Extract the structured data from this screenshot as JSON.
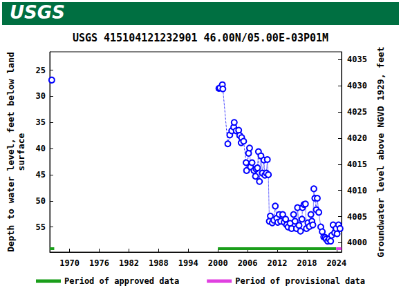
{
  "logo": "USGS",
  "chart_data": {
    "type": "scatter",
    "title": "USGS 415104121232901 46.00N/05.00E-03P01M",
    "y_label": "Depth to water level, feet below land\nsurface",
    "y2_label": "Groundwater level above NGVD 1929, feet",
    "x": [
      1966.4,
      null,
      2000.2,
      2000.4,
      2000.9,
      2001.0,
      2002.0,
      2002.4,
      2002.8,
      2003.2,
      2003.3,
      2003.7,
      2004.2,
      2004.4,
      2004.7,
      2004.8,
      2005.2,
      2005.7,
      2005.8,
      2006.2,
      2006.4,
      2006.6,
      2006.9,
      2007.3,
      2007.6,
      2007.7,
      2008.0,
      2008.2,
      2008.4,
      2008.7,
      2009.0,
      2009.3,
      2009.5,
      2009.8,
      2010.0,
      2010.2,
      2010.4,
      2010.6,
      2011.0,
      2011.3,
      2011.6,
      2011.9,
      2012.1,
      2012.4,
      2012.7,
      2013.1,
      2013.4,
      2013.7,
      2013.9,
      2014.2,
      2014.6,
      2014.9,
      2015.3,
      2015.6,
      2015.9,
      2016.1,
      2016.4,
      2016.7,
      2017.0,
      2017.1,
      2017.4,
      2017.7,
      2017.9,
      2018.2,
      2018.5,
      2018.8,
      2019.0,
      2019.2,
      2019.4,
      2019.6,
      2019.9,
      2020.1,
      2020.4,
      2020.8,
      2021.1,
      2021.4,
      2021.7,
      2021.9,
      2022.2,
      2022.5,
      2022.8,
      2023.0,
      2023.3,
      2023.6,
      2023.9,
      2024.1,
      2024.4,
      2024.7
    ],
    "values": [
      26.9,
      null,
      28.5,
      28.4,
      27.8,
      28.6,
      39.1,
      37.4,
      36.6,
      35.9,
      35.0,
      36.6,
      36.5,
      37.5,
      38.9,
      37.9,
      38.6,
      42.7,
      44.2,
      40.9,
      39.9,
      43.5,
      42.7,
      44.2,
      45.3,
      43.9,
      43.7,
      40.6,
      46.3,
      41.4,
      44.7,
      42.2,
      45.1,
      44.7,
      42.1,
      45.0,
      53.9,
      52.9,
      54.2,
      53.7,
      51.0,
      53.3,
      54.1,
      52.6,
      53.9,
      52.6,
      54.1,
      53.5,
      54.6,
      55.0,
      54.3,
      55.3,
      52.6,
      53.9,
      55.3,
      51.3,
      54.7,
      55.8,
      53.5,
      51.3,
      50.7,
      50.6,
      55.3,
      54.2,
      54.9,
      52.6,
      53.9,
      54.6,
      47.7,
      49.5,
      51.7,
      49.5,
      52.2,
      55.0,
      55.9,
      56.9,
      57.0,
      57.3,
      57.7,
      57.3,
      57.7,
      56.6,
      54.6,
      56.1,
      55.3,
      56.3,
      54.6,
      55.3
    ],
    "color": "#0000ff",
    "marker": "circle",
    "line_style": "dotted",
    "xlim": [
      1966,
      2025
    ],
    "xticks": [
      1970,
      1976,
      1982,
      1988,
      1994,
      2000,
      2006,
      2012,
      2018,
      2024
    ],
    "ylim": [
      59.8,
      21.5
    ],
    "yticks": [
      25,
      30,
      35,
      40,
      45,
      50,
      55
    ],
    "y2lim": [
      3998.2,
      4036.5
    ],
    "y2ticks": [
      4000,
      4005,
      4010,
      4015,
      4020,
      4025,
      4030,
      4035
    ],
    "grid": false,
    "legend": "bottom",
    "periods": [
      {
        "name": "Period of approved data",
        "color": "#1a9e1a",
        "ranges": [
          [
            1966,
            1966.9
          ],
          [
            2000,
            2023.9
          ]
        ]
      },
      {
        "name": "Period of provisional data",
        "color": "#e040e0",
        "ranges": [
          [
            2023.9,
            2025
          ]
        ]
      }
    ]
  }
}
